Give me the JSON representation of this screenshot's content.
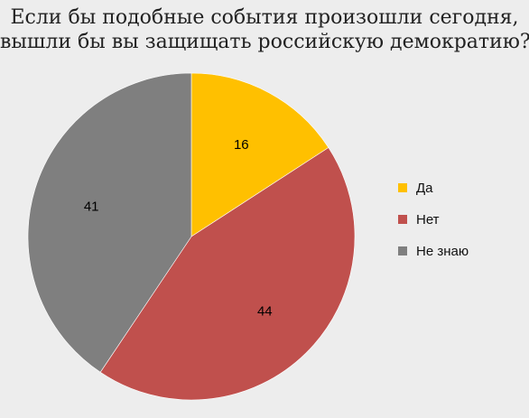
{
  "chart_data": {
    "type": "pie",
    "title_lines": [
      "Если бы подобные события произошли сегодня,",
      "вышли бы вы защищать российскую демократию?"
    ],
    "categories": [
      "Да",
      "Нет",
      "Не знаю"
    ],
    "values": [
      16,
      44,
      41
    ],
    "labels": [
      "16",
      "44",
      "41"
    ],
    "colors": [
      "#ffc000",
      "#c0504d",
      "#7f7f7f"
    ],
    "start_angle_deg": 0,
    "direction": "clockwise",
    "legend_position": "right"
  }
}
